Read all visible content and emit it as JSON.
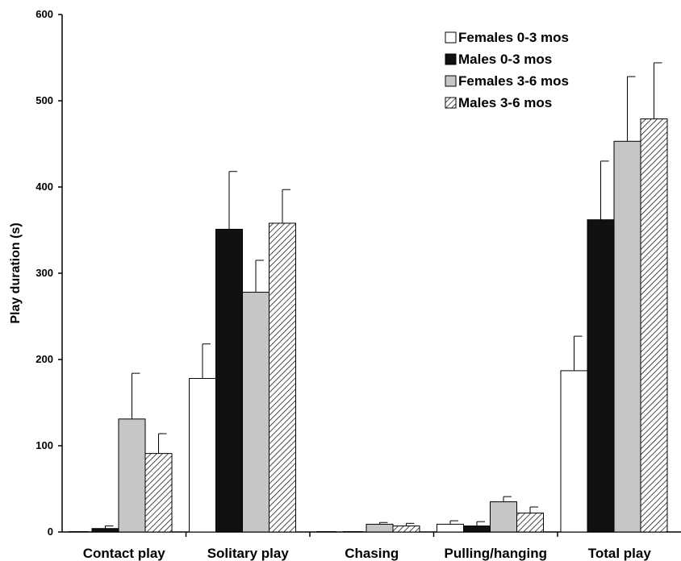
{
  "chart_data": {
    "type": "bar",
    "title": "",
    "xlabel": "",
    "ylabel": "Play duration (s)",
    "ylim": [
      0,
      600
    ],
    "yticks": [
      "0",
      "100",
      "200",
      "300",
      "400",
      "500",
      "600"
    ],
    "categories": [
      "Contact play",
      "Solitary play",
      "Chasing",
      "Pulling/hanging",
      "Total play"
    ],
    "grid": false,
    "legend_position": "top-right",
    "series": [
      {
        "name": "Females 0-3 mos",
        "fill": "#ffffff",
        "pattern": "none",
        "values": [
          0,
          178,
          0,
          9,
          187
        ],
        "errors": [
          0,
          40,
          0,
          4,
          40
        ]
      },
      {
        "name": "Males 0-3 mos",
        "fill": "#111111",
        "pattern": "none",
        "values": [
          4,
          351,
          0,
          7,
          362
        ],
        "errors": [
          3,
          67,
          0,
          5,
          68
        ]
      },
      {
        "name": "Females 3-6 mos",
        "fill": "#c6c6c6",
        "pattern": "none",
        "values": [
          131,
          278,
          9,
          35,
          453
        ],
        "errors": [
          53,
          37,
          2,
          6,
          75
        ]
      },
      {
        "name": "Males 3-6 mos",
        "fill": "#ffffff",
        "pattern": "hatch",
        "values": [
          91,
          358,
          7,
          22,
          479
        ],
        "errors": [
          23,
          39,
          3,
          7,
          65
        ]
      }
    ]
  }
}
